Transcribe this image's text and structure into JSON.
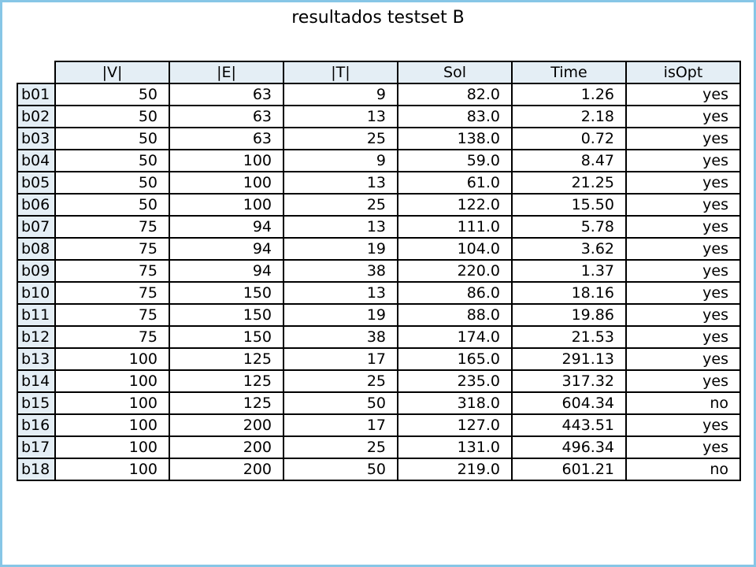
{
  "chart_data": {
    "type": "table",
    "title": "resultados testset B",
    "columns": [
      "|V|",
      "|E|",
      "|T|",
      "Sol",
      "Time",
      "isOpt"
    ],
    "rows": [
      {
        "label": "b01",
        "values": [
          "50",
          "63",
          "9",
          "82.0",
          "1.26",
          "yes"
        ]
      },
      {
        "label": "b02",
        "values": [
          "50",
          "63",
          "13",
          "83.0",
          "2.18",
          "yes"
        ]
      },
      {
        "label": "b03",
        "values": [
          "50",
          "63",
          "25",
          "138.0",
          "0.72",
          "yes"
        ]
      },
      {
        "label": "b04",
        "values": [
          "50",
          "100",
          "9",
          "59.0",
          "8.47",
          "yes"
        ]
      },
      {
        "label": "b05",
        "values": [
          "50",
          "100",
          "13",
          "61.0",
          "21.25",
          "yes"
        ]
      },
      {
        "label": "b06",
        "values": [
          "50",
          "100",
          "25",
          "122.0",
          "15.50",
          "yes"
        ]
      },
      {
        "label": "b07",
        "values": [
          "75",
          "94",
          "13",
          "111.0",
          "5.78",
          "yes"
        ]
      },
      {
        "label": "b08",
        "values": [
          "75",
          "94",
          "19",
          "104.0",
          "3.62",
          "yes"
        ]
      },
      {
        "label": "b09",
        "values": [
          "75",
          "94",
          "38",
          "220.0",
          "1.37",
          "yes"
        ]
      },
      {
        "label": "b10",
        "values": [
          "75",
          "150",
          "13",
          "86.0",
          "18.16",
          "yes"
        ]
      },
      {
        "label": "b11",
        "values": [
          "75",
          "150",
          "19",
          "88.0",
          "19.86",
          "yes"
        ]
      },
      {
        "label": "b12",
        "values": [
          "75",
          "150",
          "38",
          "174.0",
          "21.53",
          "yes"
        ]
      },
      {
        "label": "b13",
        "values": [
          "100",
          "125",
          "17",
          "165.0",
          "291.13",
          "yes"
        ]
      },
      {
        "label": "b14",
        "values": [
          "100",
          "125",
          "25",
          "235.0",
          "317.32",
          "yes"
        ]
      },
      {
        "label": "b15",
        "values": [
          "100",
          "125",
          "50",
          "318.0",
          "604.34",
          "no"
        ]
      },
      {
        "label": "b16",
        "values": [
          "100",
          "200",
          "17",
          "127.0",
          "443.51",
          "yes"
        ]
      },
      {
        "label": "b17",
        "values": [
          "100",
          "200",
          "25",
          "131.0",
          "496.34",
          "yes"
        ]
      },
      {
        "label": "b18",
        "values": [
          "100",
          "200",
          "50",
          "219.0",
          "601.21",
          "no"
        ]
      }
    ],
    "colors": {
      "header_bg": "#e4eef5",
      "frame": "#87c6e6",
      "grid": "#000000"
    }
  }
}
